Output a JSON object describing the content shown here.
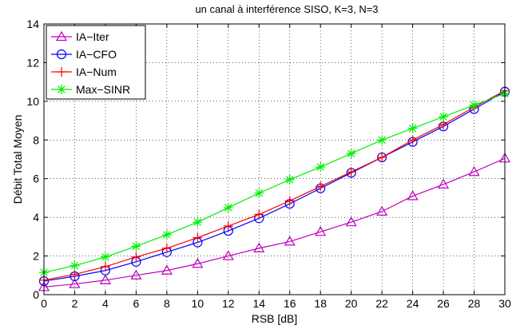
{
  "chart_data": {
    "type": "line",
    "title": "un canal à interférence SISO, K=3, N=3",
    "xlabel": "RSB [dB]",
    "ylabel": "Débit Total Moyen",
    "xlim": [
      0,
      30
    ],
    "ylim": [
      0,
      14
    ],
    "xticks": [
      0,
      2,
      4,
      6,
      8,
      10,
      12,
      14,
      16,
      18,
      20,
      22,
      24,
      26,
      28,
      30
    ],
    "yticks": [
      0,
      2,
      4,
      6,
      8,
      10,
      12,
      14
    ],
    "grid": true,
    "legend_position": "top-left",
    "x": [
      0,
      2,
      4,
      6,
      8,
      10,
      12,
      14,
      16,
      18,
      20,
      22,
      24,
      26,
      28,
      30
    ],
    "series": [
      {
        "name": "IA−Iter",
        "color": "#bf00bf",
        "marker": "triangle",
        "values": [
          0.4,
          0.55,
          0.75,
          1.0,
          1.25,
          1.6,
          2.0,
          2.4,
          2.75,
          3.25,
          3.75,
          4.3,
          5.1,
          5.7,
          6.35,
          7.05
        ]
      },
      {
        "name": "IA−CFO",
        "color": "#0000ff",
        "marker": "circle",
        "values": [
          0.7,
          0.95,
          1.25,
          1.7,
          2.2,
          2.7,
          3.3,
          3.95,
          4.7,
          5.5,
          6.3,
          7.1,
          7.9,
          8.7,
          9.6,
          10.5
        ]
      },
      {
        "name": "IA−Num",
        "color": "#ff0000",
        "marker": "plus",
        "values": [
          0.75,
          1.05,
          1.45,
          1.95,
          2.4,
          2.95,
          3.55,
          4.15,
          4.85,
          5.6,
          6.35,
          7.1,
          8.0,
          8.8,
          9.7,
          10.55
        ]
      },
      {
        "name": "Max−SINR",
        "color": "#00ee00",
        "marker": "star",
        "values": [
          1.15,
          1.5,
          1.95,
          2.5,
          3.1,
          3.75,
          4.5,
          5.25,
          5.95,
          6.6,
          7.3,
          8.0,
          8.6,
          9.2,
          9.8,
          10.4
        ]
      }
    ]
  }
}
